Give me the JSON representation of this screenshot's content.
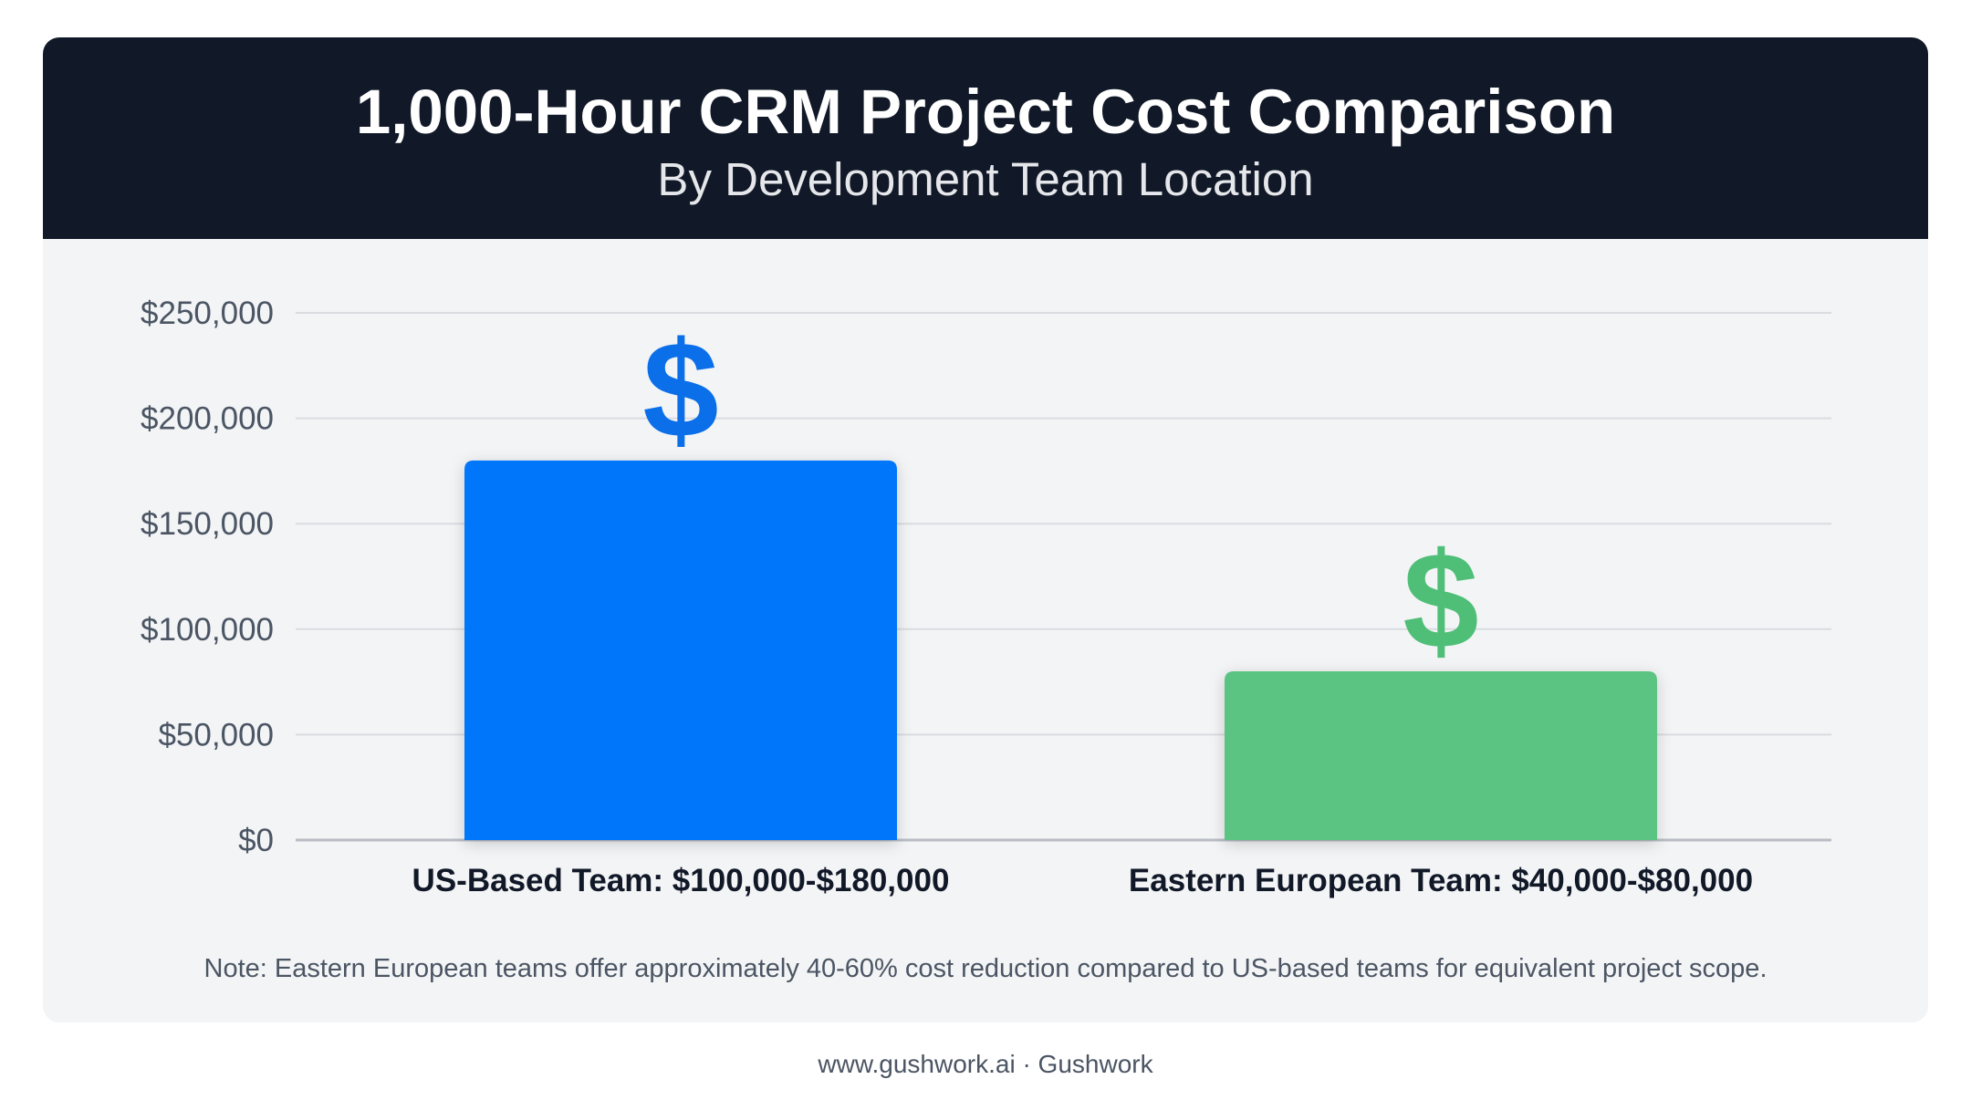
{
  "header": {
    "title": "1,000-Hour CRM Project Cost Comparison",
    "subtitle": "By Development Team Location"
  },
  "chart_data": {
    "type": "bar",
    "title": "1,000-Hour CRM Project Cost Comparison",
    "subtitle": "By Development Team Location",
    "categories": [
      "US-Based Team: $100,000-$180,000",
      "Eastern European Team: $40,000-$80,000"
    ],
    "values": [
      180000,
      80000
    ],
    "ranges": [
      [
        100000,
        180000
      ],
      [
        40000,
        80000
      ]
    ],
    "ylim": [
      0,
      250000
    ],
    "yticks": [
      0,
      50000,
      100000,
      150000,
      200000,
      250000
    ],
    "ytick_labels": [
      "$0",
      "$50,000",
      "$100,000",
      "$150,000",
      "$200,000",
      "$250,000"
    ],
    "xlabel": "",
    "ylabel": "",
    "grid": true,
    "legend": "none",
    "bar_colors": [
      "#0477fa",
      "#5bc483"
    ],
    "bar_icons": [
      "dollar-icon",
      "dollar-icon"
    ],
    "icon_glyph": "$"
  },
  "note": "Note: Eastern European teams offer approximately 40-60% cost reduction compared to US-based teams for equivalent project scope.",
  "footer": "www.gushwork.ai · Gushwork"
}
